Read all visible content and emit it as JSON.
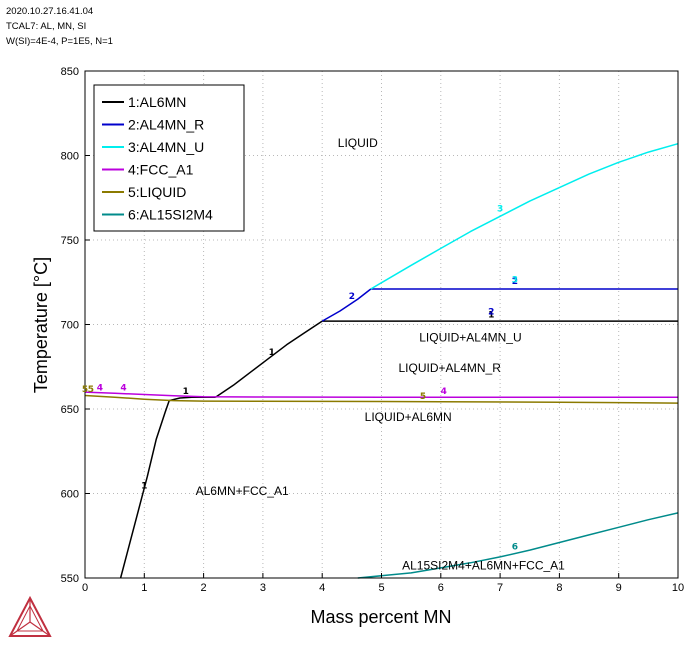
{
  "header": {
    "line1": "2020.10.27.16.41.04",
    "line2": "TCAL7: AL, MN, SI",
    "line3": "W(SI)=4E-4, P=1E5, N=1"
  },
  "chart_data": {
    "type": "line",
    "xlabel": "Mass percent MN",
    "ylabel": "Temperature [°C]",
    "xlim": [
      0,
      10
    ],
    "ylim": [
      550,
      850
    ],
    "xticks": [
      0,
      1,
      2,
      3,
      4,
      5,
      6,
      7,
      8,
      9,
      10
    ],
    "yticks": [
      550,
      600,
      650,
      700,
      750,
      800,
      850
    ],
    "grid": true,
    "legend_position": "top-left",
    "series": [
      {
        "name": "1:AL6MN",
        "label": "1",
        "color": "#000000",
        "segments": [
          [
            [
              0.6,
              550
            ],
            [
              0.75,
              570
            ],
            [
              0.9,
              590
            ],
            [
              1.05,
              610
            ],
            [
              1.2,
              632
            ],
            [
              1.35,
              648
            ],
            [
              1.42,
              655
            ],
            [
              1.6,
              656.5
            ],
            [
              1.8,
              657
            ],
            [
              2.2,
              657
            ]
          ],
          [
            [
              2.2,
              657
            ],
            [
              2.5,
              664
            ],
            [
              2.8,
              672
            ],
            [
              3.1,
              680
            ],
            [
              3.4,
              688
            ],
            [
              3.7,
              695
            ],
            [
              4.0,
              702
            ]
          ],
          [
            [
              4.0,
              702
            ],
            [
              10.0,
              702
            ]
          ]
        ]
      },
      {
        "name": "2:AL4MN_R",
        "label": "2",
        "color": "#0000cc",
        "segments": [
          [
            [
              4.0,
              702
            ],
            [
              4.3,
              708
            ],
            [
              4.6,
              715
            ],
            [
              4.82,
              721
            ]
          ],
          [
            [
              4.82,
              721
            ],
            [
              10.0,
              721
            ]
          ]
        ]
      },
      {
        "name": "3:AL4MN_U",
        "label": "3",
        "color": "#00eeee",
        "segments": [
          [
            [
              4.82,
              721
            ],
            [
              5.5,
              735
            ],
            [
              6.0,
              745
            ],
            [
              6.5,
              755
            ],
            [
              7.0,
              764
            ],
            [
              7.5,
              773
            ],
            [
              8.0,
              781
            ],
            [
              8.5,
              789
            ],
            [
              9.0,
              796
            ],
            [
              9.5,
              802
            ],
            [
              10.0,
              807
            ]
          ]
        ]
      },
      {
        "name": "4:FCC_A1",
        "label": "4",
        "color": "#bb00dd",
        "segments": [
          [
            [
              0.0,
              660
            ],
            [
              0.5,
              659.3
            ],
            [
              1.0,
              658.6
            ],
            [
              1.5,
              657.8
            ],
            [
              2.0,
              657.3
            ],
            [
              3.0,
              657.1
            ],
            [
              5.0,
              657
            ],
            [
              10.0,
              657
            ]
          ]
        ]
      },
      {
        "name": "5:LIQUID",
        "label": "5",
        "color": "#8b7a00",
        "segments": [
          [
            [
              0.0,
              658
            ],
            [
              0.5,
              657
            ],
            [
              1.0,
              655.8
            ],
            [
              1.5,
              655
            ],
            [
              2.0,
              654.7
            ],
            [
              4.0,
              654.5
            ],
            [
              6.0,
              654.3
            ],
            [
              8.0,
              654
            ],
            [
              10.0,
              653.5
            ]
          ]
        ]
      },
      {
        "name": "6:AL15SI2M4",
        "label": "6",
        "color": "#008b8b",
        "segments": [
          [
            [
              4.6,
              550
            ],
            [
              5.5,
              553
            ],
            [
              6.0,
              556
            ],
            [
              6.5,
              559
            ],
            [
              7.0,
              562.5
            ],
            [
              7.5,
              566.5
            ],
            [
              8.0,
              571
            ],
            [
              8.5,
              575.5
            ],
            [
              9.0,
              580
            ],
            [
              9.5,
              584.5
            ],
            [
              10.0,
              588.5
            ]
          ]
        ]
      }
    ],
    "line_labels": [
      {
        "text": "1",
        "x": 1.0,
        "y": 603,
        "color": "#000000"
      },
      {
        "text": "1",
        "x": 1.7,
        "y": 659,
        "color": "#000000"
      },
      {
        "text": "1",
        "x": 3.15,
        "y": 682,
        "color": "#000000"
      },
      {
        "text": "1",
        "x": 6.85,
        "y": 704,
        "color": "#000000"
      },
      {
        "text": "2",
        "x": 4.5,
        "y": 715,
        "color": "#0000cc"
      },
      {
        "text": "2",
        "x": 6.85,
        "y": 706,
        "color": "#0000cc"
      },
      {
        "text": "2",
        "x": 7.25,
        "y": 724,
        "color": "#0000cc"
      },
      {
        "text": "3",
        "x": 7.25,
        "y": 725,
        "color": "#00eeee"
      },
      {
        "text": "3",
        "x": 7.0,
        "y": 767,
        "color": "#00eeee"
      },
      {
        "text": "4",
        "x": 0.25,
        "y": 661,
        "color": "#bb00dd"
      },
      {
        "text": "4",
        "x": 0.65,
        "y": 661,
        "color": "#bb00dd"
      },
      {
        "text": "4",
        "x": 6.05,
        "y": 659,
        "color": "#bb00dd"
      },
      {
        "text": "5",
        "x": 0.0,
        "y": 660,
        "color": "#8b7a00"
      },
      {
        "text": "5",
        "x": 0.1,
        "y": 660,
        "color": "#8b7a00"
      },
      {
        "text": "5",
        "x": 5.7,
        "y": 656,
        "color": "#8b7a00"
      },
      {
        "text": "6",
        "x": 7.25,
        "y": 567,
        "color": "#008b8b"
      }
    ],
    "region_labels": [
      {
        "text": "LIQUID",
        "x": 4.6,
        "y": 805
      },
      {
        "text": "LIQUID+AL4MN_U",
        "x": 6.5,
        "y": 690
      },
      {
        "text": "LIQUID+AL4MN_R",
        "x": 6.15,
        "y": 672
      },
      {
        "text": "LIQUID+AL6MN",
        "x": 5.45,
        "y": 643
      },
      {
        "text": "AL6MN+FCC_A1",
        "x": 2.65,
        "y": 599
      },
      {
        "text": "AL15SI2M4+AL6MN+FCC_A1",
        "x": 6.72,
        "y": 555
      }
    ]
  }
}
